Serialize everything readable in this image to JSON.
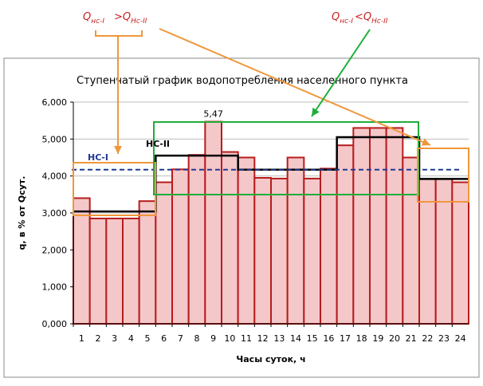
{
  "chart_data": {
    "type": "bar",
    "title": "Ступенчатый график водопотребления населенного пункта",
    "xlabel": "Часы суток, ч",
    "ylabel": "q, в % от Qсут.",
    "ylim": [
      0,
      6
    ],
    "yticks": [
      "0,000",
      "1,000",
      "2,000",
      "3,000",
      "4,000",
      "5,000",
      "6,000"
    ],
    "categories": [
      "1",
      "2",
      "3",
      "4",
      "5",
      "6",
      "7",
      "8",
      "9",
      "10",
      "11",
      "12",
      "13",
      "14",
      "15",
      "16",
      "17",
      "18",
      "19",
      "20",
      "21",
      "22",
      "23",
      "24"
    ],
    "grid": true,
    "series": [
      {
        "values": [
          3.4,
          2.85,
          2.85,
          2.85,
          3.32,
          3.83,
          4.18,
          4.57,
          5.47,
          4.65,
          4.5,
          3.95,
          3.93,
          4.5,
          3.93,
          4.2,
          4.83,
          5.3,
          5.3,
          5.3,
          4.5,
          3.92,
          3.92,
          3.83
        ],
        "color": "#f4c7c9",
        "edge": "#b71c1c"
      }
    ],
    "pump_steps": {
      "color": "#000000",
      "values": [
        3.04,
        3.04,
        3.04,
        3.04,
        3.04,
        4.55,
        4.55,
        4.55,
        4.55,
        4.55,
        4.17,
        4.17,
        4.17,
        4.17,
        4.17,
        4.17,
        5.05,
        5.05,
        5.05,
        5.05,
        5.05,
        3.92,
        3.92,
        3.92
      ]
    },
    "average_line": {
      "value": 4.17,
      "color": "#1f3a93",
      "style": "dashed"
    },
    "data_labels": [
      {
        "hour": "9",
        "text": "5,47"
      }
    ]
  },
  "annotations": {
    "q_left": {
      "main": "Q",
      "sub1": "нс-I",
      "op": ">",
      "main2": "Q",
      "sub2": "Нс-II"
    },
    "q_right": {
      "main": "Q",
      "sub1": "нс-I",
      "op": "<",
      "main2": "Q",
      "sub2": "Нс-II"
    },
    "ns1": "НС-I",
    "ns2": "НС-II"
  },
  "colors": {
    "orange": "#f0973a",
    "green": "#1fae3a",
    "red_text": "#c81e1e",
    "blue": "#1f3a93"
  }
}
